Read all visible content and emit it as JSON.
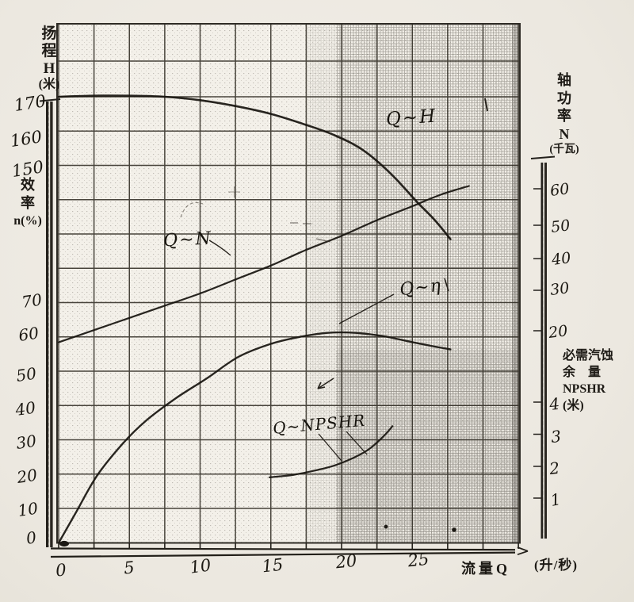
{
  "axes": {
    "head": {
      "title_chars": [
        "扬",
        "程",
        "H",
        "(米)"
      ],
      "ticks": [
        "170",
        "160",
        "150"
      ]
    },
    "efficiency": {
      "title_chars": [
        "效",
        "率",
        "n(%)"
      ],
      "ticks": [
        "70",
        "60",
        "50",
        "40",
        "30",
        "20",
        "10",
        "0"
      ]
    },
    "power": {
      "title_chars": [
        "轴",
        "功",
        "率",
        "N",
        "(千瓦)"
      ],
      "ticks": [
        "60",
        "50",
        "40",
        "30",
        "20"
      ]
    },
    "npshr": {
      "title_lines": [
        "必需汽蚀",
        "余　量",
        "NPSHR",
        "(米)"
      ],
      "ticks": [
        "4",
        "3",
        "2",
        "1"
      ]
    },
    "flow": {
      "ticks": [
        "0",
        "5",
        "10",
        "15",
        "20",
        "25"
      ],
      "title": "流量Q",
      "unit": "(升/秒)"
    }
  },
  "curve_labels": {
    "qh": "Q~H",
    "qn": "Q~N",
    "qeta": "Q~η",
    "qnpshr": "Q~NPSHR"
  },
  "chart_data": {
    "type": "line",
    "title": "",
    "x_axis": {
      "label": "流量Q",
      "unit": "升/秒",
      "range": [
        0,
        32.5
      ],
      "ticks": [
        0,
        5,
        10,
        15,
        20,
        25
      ]
    },
    "y_axes": {
      "H": {
        "label": "扬程 H (米)",
        "ticks": [
          170,
          160,
          150
        ]
      },
      "eta": {
        "label": "效率 n(%)",
        "ticks": [
          70,
          60,
          50,
          40,
          30,
          20,
          10,
          0
        ]
      },
      "N": {
        "label": "轴功率 N (千瓦)",
        "ticks": [
          60,
          50,
          40,
          30,
          20
        ]
      },
      "NPSHR": {
        "label": "必需汽蚀余量 NPSHR (米)",
        "ticks": [
          4,
          3,
          2,
          1
        ]
      }
    },
    "grid": "on",
    "series": [
      {
        "name": "Q~H",
        "y_axis": "H",
        "points": [
          [
            0,
            170
          ],
          [
            2.5,
            170.3
          ],
          [
            5,
            170.3
          ],
          [
            7.5,
            170
          ],
          [
            10,
            169
          ],
          [
            12.5,
            167.3
          ],
          [
            15,
            165
          ],
          [
            17.5,
            161.8
          ],
          [
            19.5,
            158.8
          ],
          [
            21.5,
            154.5
          ],
          [
            23.5,
            147.5
          ],
          [
            25.3,
            139.5
          ],
          [
            26.6,
            134
          ],
          [
            27.7,
            128.5
          ]
        ]
      },
      {
        "name": "Q~N",
        "y_axis": "N",
        "points": [
          [
            0,
            16
          ],
          [
            2.5,
            19.5
          ],
          [
            5,
            23
          ],
          [
            7.5,
            26.5
          ],
          [
            10,
            30
          ],
          [
            12.5,
            34
          ],
          [
            15,
            38
          ],
          [
            17.5,
            42.5
          ],
          [
            20,
            46.5
          ],
          [
            22.5,
            51
          ],
          [
            25,
            55
          ],
          [
            27,
            58.3
          ],
          [
            29,
            60.8
          ]
        ]
      },
      {
        "name": "Q~η",
        "y_axis": "eta",
        "points": [
          [
            0,
            0
          ],
          [
            1.2,
            8.7
          ],
          [
            2.7,
            19.5
          ],
          [
            4.5,
            28.8
          ],
          [
            6.2,
            35.7
          ],
          [
            8.3,
            42.2
          ],
          [
            10.5,
            48
          ],
          [
            12.7,
            54.2
          ],
          [
            15,
            58
          ],
          [
            17,
            60
          ],
          [
            19,
            61.2
          ],
          [
            21,
            61.2
          ],
          [
            23,
            60.2
          ],
          [
            25,
            58.5
          ],
          [
            26.6,
            57.2
          ],
          [
            27.7,
            56.4
          ]
        ]
      },
      {
        "name": "Q~NPSHR",
        "y_axis": "NPSHR",
        "points": [
          [
            14.9,
            1.65
          ],
          [
            16.5,
            1.72
          ],
          [
            18,
            1.85
          ],
          [
            19.5,
            2.02
          ],
          [
            20.9,
            2.27
          ],
          [
            22,
            2.55
          ],
          [
            23,
            2.95
          ],
          [
            23.6,
            3.25
          ]
        ]
      }
    ]
  },
  "colors": {
    "ink": "#17140e",
    "grid": "#39352d",
    "paper": "#efece4"
  }
}
